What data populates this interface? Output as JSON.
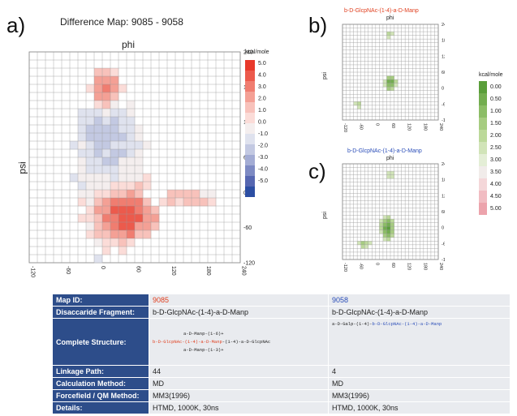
{
  "panel_a": {
    "letter": "a)",
    "title": "Difference Map: 9085 - 9058",
    "x_label": "phi",
    "y_label": "psi",
    "legend_title": "kcal/mole",
    "legend_colors": [
      "#e8392b",
      "#ec5a4c",
      "#f07d70",
      "#f4a095",
      "#f8c2bb",
      "#fbdcd8",
      "#f4eeee",
      "#dfe2ee",
      "#c3c9e2",
      "#a3acd4",
      "#7d8ac3",
      "#5667b1",
      "#2c4ea3"
    ],
    "legend_labels": [
      "5.0",
      "4.0",
      "3.0",
      "2.0",
      "1.0",
      "0.0",
      "-1.0",
      "-2.0",
      "-3.0",
      "-4.0",
      "-5.0"
    ]
  },
  "panel_b": {
    "letter": "b)",
    "title": "b-D-GlcpNAc-(1-4)-a-D-Manp",
    "title_color": "#e04020",
    "x_label": "phi",
    "y_label": "psi"
  },
  "panel_c": {
    "letter": "c)",
    "title": "b-D-GlcpNAc-(1-4)-a-D-Manp",
    "title_color": "#2a4db8",
    "x_label": "phi",
    "y_label": "psi"
  },
  "legend_bc": {
    "title": "kcal/mole",
    "labels": [
      "0.00",
      "0.50",
      "1.00",
      "1.50",
      "2.00",
      "2.50",
      "3.00",
      "3.50",
      "4.00",
      "4.50",
      "5.00"
    ],
    "colors": [
      "#5a9e3a",
      "#73ad4f",
      "#8cbd66",
      "#a6cc80",
      "#bcd99a",
      "#d1e4b8",
      "#e4eed6",
      "#f1ecea",
      "#f4d7d9",
      "#f1bcc2",
      "#eca3ac"
    ]
  },
  "table": {
    "rows": [
      {
        "key": "Map ID:",
        "a": "9085",
        "b": "9058"
      },
      {
        "key": "Disaccaride Fragment:",
        "a": "b-D-GlcpNAc-(1-4)-a-D-Manp",
        "b": "b-D-GlcpNAc-(1-4)-a-D-Manp"
      },
      {
        "key": "Complete Structure:",
        "a": "",
        "b": ""
      },
      {
        "key": "Linkage Path:",
        "a": "44",
        "b": "4"
      },
      {
        "key": "Calculation Method:",
        "a": "MD",
        "b": "MD"
      },
      {
        "key": "Forcefield / QM Method:",
        "a": "MM3(1996)",
        "b": "MM3(1996)"
      },
      {
        "key": "Details:",
        "a": "HTMD, 1000K, 30ns",
        "b": "HTMD, 1000K, 30ns"
      }
    ],
    "structure_a": {
      "line1": "a-D-Manp-(1-6)+",
      "line2_red": "b-D-GlcpNAc-(1-4)-a-D-Manp",
      "line2_rest": "-(1-4)-a-D-GlcpNAc",
      "line3": "a-D-Manp-(1-3)+"
    },
    "structure_b": {
      "prefix": "a-D-Galp-(1-4)-",
      "blue": "b-D-GlcpNAc-(1-4)-a-D-Manp"
    }
  }
}
